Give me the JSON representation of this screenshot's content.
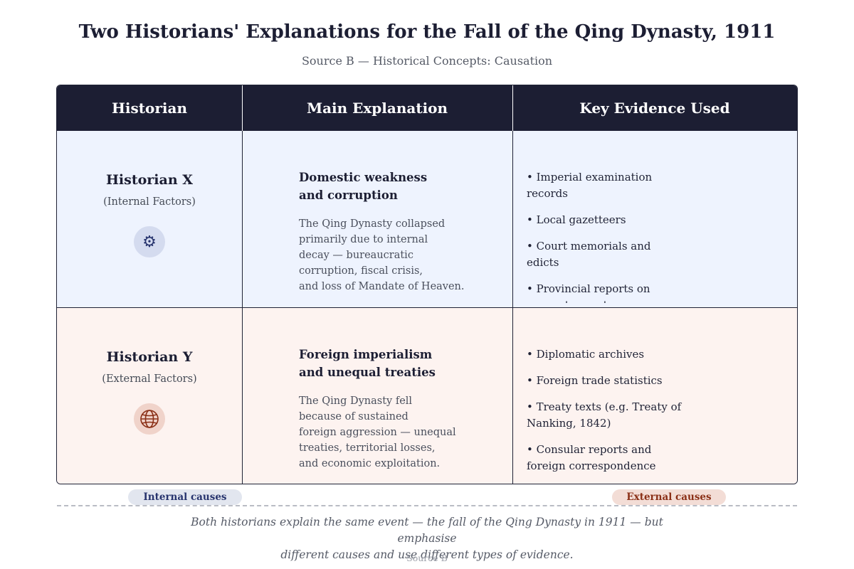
{
  "header": {
    "title": "Two Historians' Explanations for the Fall of the Qing Dynasty, 1911",
    "subtitle": "Source B — Historical Concepts: Causation"
  },
  "table": {
    "columns": [
      "Historian",
      "Main Explanation",
      "Key Evidence Used"
    ],
    "rows": [
      {
        "historian": "Historian X",
        "focus": "(Internal Factors)",
        "icon": "gear-icon",
        "explanation_title_line1": "Domestic weakness",
        "explanation_title_line2": "and corruption",
        "explanation_lines": [
          "The Qing Dynasty collapsed",
          "primarily due to internal",
          "decay — bureaucratic",
          "corruption, fiscal crisis,",
          "and loss of Mandate of Heaven."
        ],
        "evidence": [
          "Imperial examination records",
          "Local gazetteers",
          "Court memorials and edicts",
          "Provincial reports on peasant unrest"
        ],
        "accent": "#27346e",
        "background": "#eef3fe"
      },
      {
        "historian": "Historian Y",
        "focus": "(External Factors)",
        "icon": "globe-icon",
        "explanation_title_line1": "Foreign imperialism",
        "explanation_title_line2": "and unequal treaties",
        "explanation_lines": [
          "The Qing Dynasty fell",
          "because of sustained",
          "foreign aggression — unequal",
          "treaties, territorial losses,",
          "and economic exploitation."
        ],
        "evidence": [
          "Diplomatic archives",
          "Foreign trade statistics",
          "Treaty texts (e.g. Treaty of Nanking, 1842)",
          "Consular reports and foreign correspondence"
        ],
        "accent": "#8a2f16",
        "background": "#fdf3f0"
      }
    ]
  },
  "legend": {
    "internal": "Internal causes",
    "external": "External causes"
  },
  "footer": {
    "caption_line1": "Both historians explain the same event — the fall of the Qing Dynasty in 1911 — but emphasise",
    "caption_line2": "different causes and use different types of evidence.",
    "source": "Source B"
  }
}
